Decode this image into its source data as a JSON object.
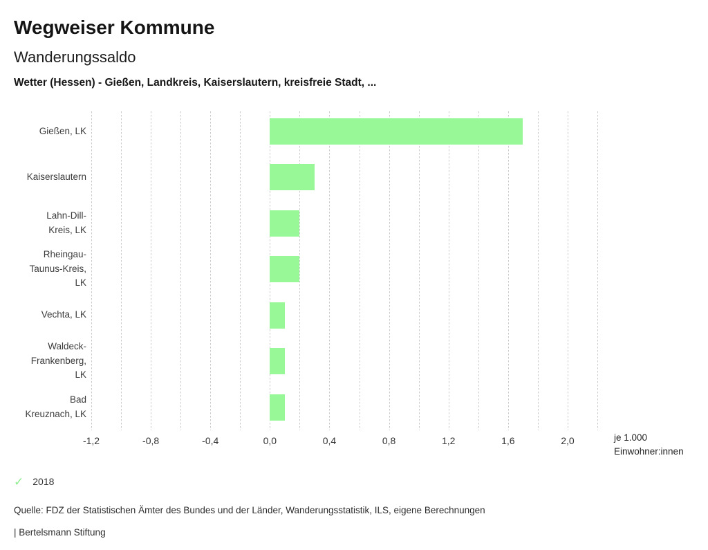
{
  "header": {
    "title": "Wegweiser Kommune",
    "subtitle": "Wanderungssaldo",
    "selection": "Wetter (Hessen) - Gießen, Landkreis, Kaiserslautern, kreisfreie Stadt, ..."
  },
  "chart_data": {
    "type": "bar",
    "orientation": "horizontal",
    "title": "Wanderungssaldo",
    "categories": [
      "Gießen, LK",
      "Kaiserslautern",
      "Lahn-Dill-Kreis, LK",
      "Rheingau-Taunus-Kreis, LK",
      "Vechta, LK",
      "Waldeck-Frankenberg, LK",
      "Bad Kreuznach, LK"
    ],
    "series": [
      {
        "name": "2018",
        "values": [
          1.7,
          0.3,
          0.2,
          0.2,
          0.1,
          0.1,
          0.1
        ]
      }
    ],
    "xlim": [
      -1.2,
      2.2
    ],
    "x_tick_values": [
      -1.2,
      -0.8,
      -0.4,
      0.0,
      0.4,
      0.8,
      1.2,
      1.6,
      2.0
    ],
    "x_tick_labels": [
      "-1,2",
      "-0,8",
      "-0,4",
      "0,0",
      "0,4",
      "0,8",
      "1,2",
      "1,6",
      "2,0"
    ],
    "gridline_step": 0.2,
    "grid": true,
    "legend_position": "bottom-left",
    "bar_color": "#98f898",
    "unit_label": [
      "je 1.000",
      "Einwohner:innen"
    ]
  },
  "legend": {
    "icon": "check-icon",
    "check_glyph": "✓",
    "label": "2018",
    "color": "#8fee8f"
  },
  "footer": {
    "source": "Quelle: FDZ der Statistischen Ämter des Bundes und der Länder, Wanderungsstatistik, ILS, eigene Berechnungen",
    "brand": "| Bertelsmann Stiftung"
  }
}
